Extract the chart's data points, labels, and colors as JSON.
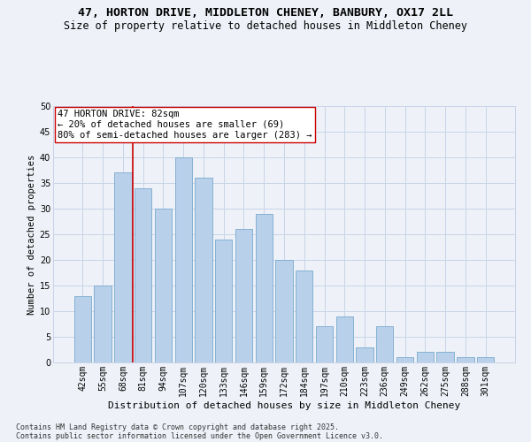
{
  "title_line1": "47, HORTON DRIVE, MIDDLETON CHENEY, BANBURY, OX17 2LL",
  "title_line2": "Size of property relative to detached houses in Middleton Cheney",
  "xlabel": "Distribution of detached houses by size in Middleton Cheney",
  "ylabel": "Number of detached properties",
  "categories": [
    "42sqm",
    "55sqm",
    "68sqm",
    "81sqm",
    "94sqm",
    "107sqm",
    "120sqm",
    "133sqm",
    "146sqm",
    "159sqm",
    "172sqm",
    "184sqm",
    "197sqm",
    "210sqm",
    "223sqm",
    "236sqm",
    "249sqm",
    "262sqm",
    "275sqm",
    "288sqm",
    "301sqm"
  ],
  "values": [
    13,
    15,
    37,
    34,
    30,
    40,
    36,
    24,
    26,
    29,
    20,
    18,
    7,
    9,
    3,
    7,
    1,
    2,
    2,
    1,
    1
  ],
  "bar_color": "#b8d0ea",
  "bar_edge_color": "#7aaace",
  "grid_color": "#c8d4e8",
  "background_color": "#eef2f8",
  "vline_x_index": 3,
  "vline_color": "#cc0000",
  "annotation_text": "47 HORTON DRIVE: 82sqm\n← 20% of detached houses are smaller (69)\n80% of semi-detached houses are larger (283) →",
  "annotation_box_color": "#ffffff",
  "annotation_box_edge_color": "#cc0000",
  "ylim": [
    0,
    50
  ],
  "yticks": [
    0,
    5,
    10,
    15,
    20,
    25,
    30,
    35,
    40,
    45,
    50
  ],
  "footnote_line1": "Contains HM Land Registry data © Crown copyright and database right 2025.",
  "footnote_line2": "Contains public sector information licensed under the Open Government Licence v3.0.",
  "title_fontsize": 9.5,
  "subtitle_fontsize": 8.5,
  "axis_label_fontsize": 8,
  "tick_fontsize": 7,
  "annotation_fontsize": 7.5,
  "footnote_fontsize": 6,
  "ylabel_fontsize": 7.5
}
